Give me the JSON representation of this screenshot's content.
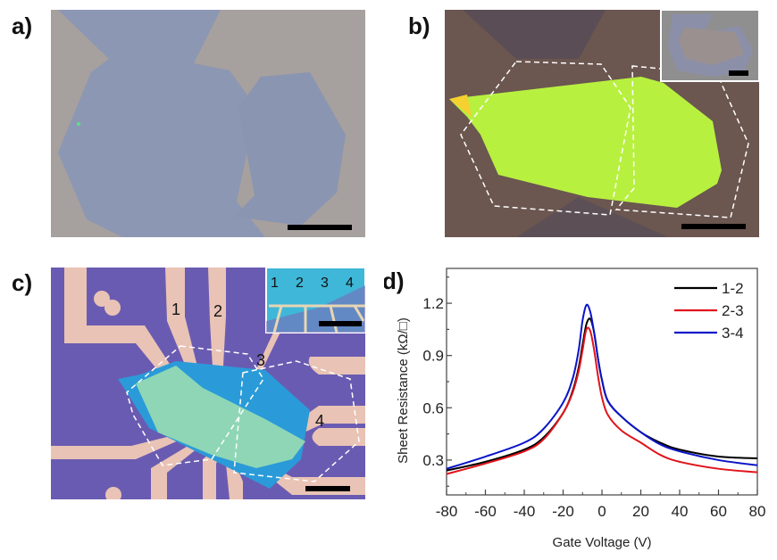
{
  "panels": {
    "a": {
      "label": "a)"
    },
    "b": {
      "label": "b)"
    },
    "c": {
      "label": "c)",
      "contact_labels": [
        "1",
        "2",
        "3",
        "4"
      ],
      "inset_labels": [
        "1",
        "2",
        "3",
        "4"
      ]
    },
    "d": {
      "label": "d)"
    }
  },
  "colors": {
    "series_1_2": "#000000",
    "series_2_3": "#e0141c",
    "series_3_4": "#0a14c8"
  },
  "chart_data": {
    "type": "line",
    "title": "",
    "xlabel": "Gate Voltage (V)",
    "ylabel": "Sheet Resistance (kΩ/□)",
    "xlim": [
      -80,
      80
    ],
    "ylim": [
      0.1,
      1.4
    ],
    "xticks": [
      -80,
      -60,
      -40,
      -20,
      0,
      20,
      40,
      60,
      80
    ],
    "xtick_labels": [
      "-80",
      "-60",
      "-40",
      "-20",
      "0",
      "20",
      "40",
      "60",
      "80"
    ],
    "yticks": [
      0.3,
      0.6,
      0.9,
      1.2
    ],
    "ytick_labels": [
      "0.3",
      "0.6",
      "0.9",
      "1.2"
    ],
    "legend_position": "top-right",
    "x": [
      -80,
      -60,
      -40,
      -30,
      -20,
      -15,
      -12,
      -10,
      -8,
      -6,
      -4,
      -2,
      0,
      3,
      10,
      20,
      30,
      40,
      60,
      80
    ],
    "series": [
      {
        "name": "1-2",
        "color": "#000000",
        "values": [
          0.24,
          0.29,
          0.36,
          0.43,
          0.57,
          0.7,
          0.83,
          0.96,
          1.08,
          1.11,
          1.03,
          0.88,
          0.76,
          0.64,
          0.55,
          0.46,
          0.4,
          0.36,
          0.32,
          0.31
        ]
      },
      {
        "name": "2-3",
        "color": "#e0141c",
        "values": [
          0.22,
          0.28,
          0.35,
          0.42,
          0.57,
          0.69,
          0.81,
          0.93,
          1.05,
          1.04,
          0.93,
          0.78,
          0.66,
          0.56,
          0.47,
          0.4,
          0.33,
          0.29,
          0.25,
          0.23
        ]
      },
      {
        "name": "3-4",
        "color": "#0a14c8",
        "values": [
          0.25,
          0.32,
          0.4,
          0.48,
          0.63,
          0.77,
          0.93,
          1.1,
          1.19,
          1.15,
          1.03,
          0.88,
          0.76,
          0.64,
          0.55,
          0.46,
          0.39,
          0.35,
          0.3,
          0.27
        ]
      }
    ]
  }
}
